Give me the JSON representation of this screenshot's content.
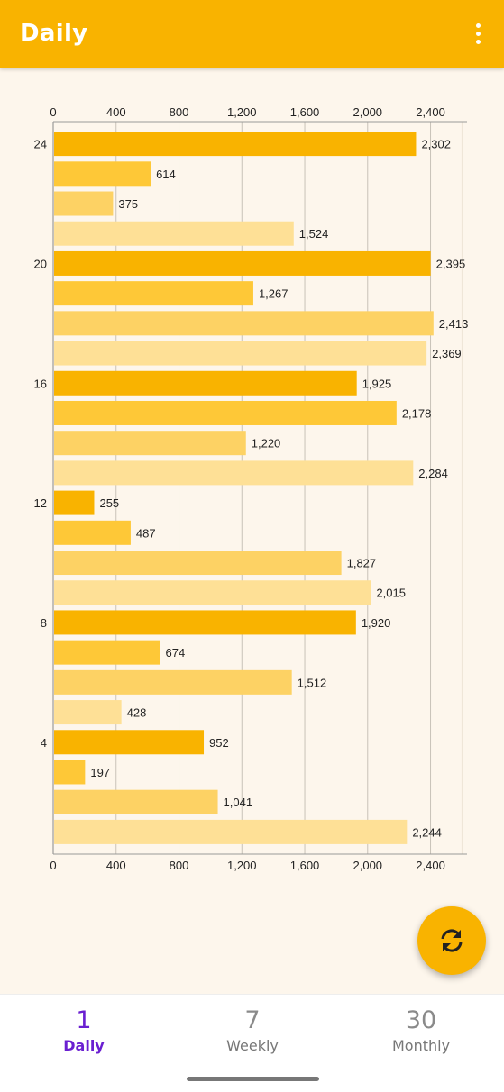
{
  "appbar": {
    "title": "Daily",
    "menu_icon": "more-vert-icon"
  },
  "fab": {
    "icon": "refresh-icon"
  },
  "tabs": [
    {
      "num": "1",
      "label": "Daily",
      "active": true
    },
    {
      "num": "7",
      "label": "Weekly",
      "active": false
    },
    {
      "num": "30",
      "label": "Monthly",
      "active": false
    }
  ],
  "chart_data": {
    "type": "bar",
    "orientation": "horizontal",
    "x_ticks": [
      "0",
      "400",
      "800",
      "1,200",
      "1,600",
      "2,000",
      "2,400"
    ],
    "x_tick_values": [
      0,
      400,
      800,
      1200,
      1600,
      2000,
      2400
    ],
    "xlim": [
      0,
      2632
    ],
    "y_tick_labels": [
      "24",
      "20",
      "16",
      "12",
      "8",
      "4"
    ],
    "y_tick_rows": [
      0,
      4,
      8,
      12,
      16,
      20
    ],
    "grid": true,
    "bars": [
      {
        "value": 2302,
        "label": "2,302"
      },
      {
        "value": 614,
        "label": "614"
      },
      {
        "value": 375,
        "label": "375"
      },
      {
        "value": 1524,
        "label": "1,524"
      },
      {
        "value": 2395,
        "label": "2,395"
      },
      {
        "value": 1267,
        "label": "1,267"
      },
      {
        "value": 2413,
        "label": "2,413"
      },
      {
        "value": 2369,
        "label": "2,369"
      },
      {
        "value": 1925,
        "label": "1,925"
      },
      {
        "value": 2178,
        "label": "2,178"
      },
      {
        "value": 1220,
        "label": "1,220"
      },
      {
        "value": 2284,
        "label": "2,284"
      },
      {
        "value": 255,
        "label": "255"
      },
      {
        "value": 487,
        "label": "487"
      },
      {
        "value": 1827,
        "label": "1,827"
      },
      {
        "value": 2015,
        "label": "2,015"
      },
      {
        "value": 1920,
        "label": "1,920"
      },
      {
        "value": 674,
        "label": "674"
      },
      {
        "value": 1512,
        "label": "1,512"
      },
      {
        "value": 428,
        "label": "428"
      },
      {
        "value": 952,
        "label": "952"
      },
      {
        "value": 197,
        "label": "197"
      },
      {
        "value": 1041,
        "label": "1,041"
      },
      {
        "value": 2244,
        "label": "2,244"
      }
    ],
    "colors": [
      "#f9b300",
      "#fec837",
      "#fdd264",
      "#fee096"
    ]
  }
}
